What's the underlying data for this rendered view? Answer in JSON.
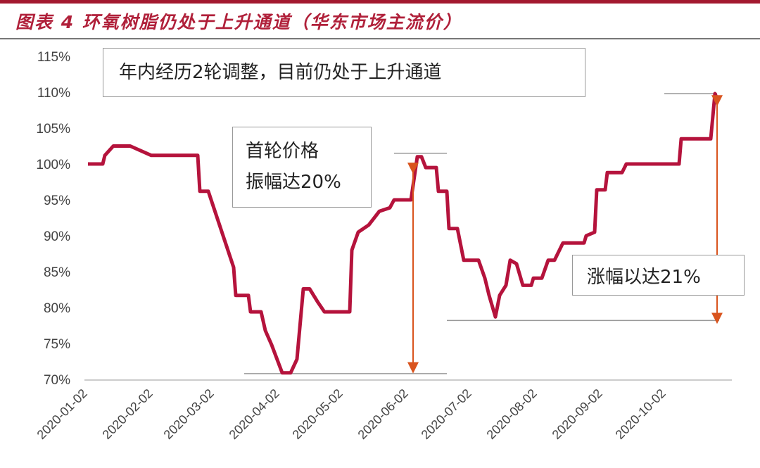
{
  "title": "图表 4 环氧树脂仍处于上升通道（华东市场主流价）",
  "colors": {
    "line": "#b5133c",
    "arrow": "#d9541e",
    "title": "#b0203a",
    "refline": "#999999"
  },
  "annotations": {
    "box1": "年内经历2轮调整，目前仍处于上升通道",
    "box2_line1": "首轮价格",
    "box2_line2": "振幅达20%",
    "box3": "涨幅以达21%"
  },
  "chart_data": {
    "type": "line",
    "title": "图表 4 环氧树脂仍处于上升通道（华东市场主流价）",
    "xlabel": "",
    "ylabel": "",
    "ylim": [
      70,
      115
    ],
    "y_ticks": [
      "70%",
      "75%",
      "80%",
      "85%",
      "90%",
      "95%",
      "100%",
      "105%",
      "110%",
      "115%"
    ],
    "x_ticks": [
      "2020-01-02",
      "2020-02-02",
      "2020-03-02",
      "2020-04-02",
      "2020-05-02",
      "2020-06-02",
      "2020-07-02",
      "2020-08-02",
      "2020-09-02",
      "2020-10-02"
    ],
    "grid": false,
    "legend": "none",
    "series": [
      {
        "x": [
          "2020-01-02",
          "2020-01-09",
          "2020-01-10",
          "2020-01-14",
          "2020-01-22",
          "2020-02-01",
          "2020-02-23",
          "2020-02-24",
          "2020-02-28",
          "2020-03-11",
          "2020-03-12",
          "2020-03-18",
          "2020-03-19",
          "2020-03-24",
          "2020-03-26",
          "2020-03-29",
          "2020-04-03",
          "2020-04-07",
          "2020-04-10",
          "2020-04-13",
          "2020-04-16",
          "2020-04-20",
          "2020-04-23",
          "2020-05-05",
          "2020-05-06",
          "2020-05-09",
          "2020-05-14",
          "2020-05-19",
          "2020-05-24",
          "2020-05-26",
          "2020-06-03",
          "2020-06-06",
          "2020-06-08",
          "2020-06-10",
          "2020-06-15",
          "2020-06-16",
          "2020-06-20",
          "2020-06-21",
          "2020-06-25",
          "2020-06-28",
          "2020-07-05",
          "2020-07-08",
          "2020-07-10",
          "2020-07-13",
          "2020-07-15",
          "2020-07-18",
          "2020-07-20",
          "2020-07-23",
          "2020-07-26",
          "2020-07-30",
          "2020-07-31",
          "2020-08-04",
          "2020-08-07",
          "2020-08-10",
          "2020-08-14",
          "2020-08-24",
          "2020-08-25",
          "2020-08-29",
          "2020-08-30",
          "2020-09-03",
          "2020-09-04",
          "2020-09-11",
          "2020-09-13",
          "2020-10-08",
          "2020-10-09",
          "2020-10-23",
          "2020-10-25",
          "2020-10-26"
        ],
        "y": [
          100,
          100,
          101.2,
          102.5,
          102.5,
          101.2,
          101.2,
          96.2,
          96.2,
          85.6,
          81.7,
          81.7,
          79.4,
          79.4,
          76.8,
          74.8,
          70.9,
          70.9,
          72.8,
          82.6,
          82.6,
          80.7,
          79.4,
          79.4,
          88,
          90.5,
          91.5,
          93.4,
          93.9,
          95,
          95,
          101,
          101,
          99.5,
          99.5,
          96.2,
          96.2,
          91,
          91,
          86.6,
          86.6,
          84.1,
          81.7,
          78.7,
          81.7,
          83.1,
          86.6,
          86.1,
          83.1,
          83.1,
          84.1,
          84.1,
          86.6,
          86.6,
          89,
          89,
          90,
          90.5,
          96.4,
          96.4,
          98.8,
          98.8,
          100,
          100,
          103.5,
          103.5,
          109.8,
          109.1
        ]
      }
    ],
    "reference_lines": [
      {
        "y": 109.8,
        "from": "2020-10-01",
        "to": "2020-10-26"
      },
      {
        "y": 101.5,
        "from": "2020-05-26",
        "to": "2020-06-20"
      },
      {
        "y": 70.8,
        "from": "2020-03-16",
        "to": "2020-06-20"
      },
      {
        "y": 78.2,
        "from": "2020-06-20",
        "to": "2020-10-27"
      }
    ],
    "arrows": [
      {
        "x": "2020-06-04",
        "from": 99.4,
        "to": 71.6
      },
      {
        "x": "2020-10-26",
        "from": 108.8,
        "to": 78.5
      }
    ]
  }
}
